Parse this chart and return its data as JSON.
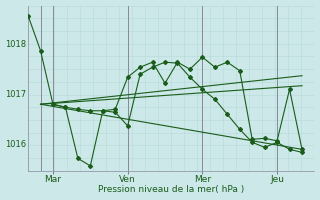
{
  "background_color": "#cce8e8",
  "grid_color_v": "#b8d8d8",
  "grid_color_h": "#b8d8d8",
  "vline_color": "#888899",
  "line_color": "#1a5c1a",
  "xlabel": "Pression niveau de la mer( hPa )",
  "yticks": [
    1016,
    1017,
    1018
  ],
  "ylim": [
    1015.45,
    1018.75
  ],
  "xlim": [
    0.0,
    11.5
  ],
  "xtick_labels": [
    "Mar",
    "Ven",
    "Mer",
    "Jeu"
  ],
  "xtick_positions": [
    1.0,
    4.0,
    7.0,
    10.0
  ],
  "vline_positions": [
    0.5,
    1.0,
    4.0,
    7.0,
    10.0
  ],
  "n_hgrid": 14,
  "n_vgrid": 14,
  "series1_x": [
    0.0,
    0.5,
    1.0,
    1.5,
    2.0,
    2.5,
    3.0,
    3.5,
    4.0,
    4.5,
    5.0,
    5.5,
    6.0,
    6.5,
    7.0,
    7.5,
    8.0,
    8.5,
    9.0,
    9.5,
    10.0,
    10.5,
    11.0
  ],
  "series1_y": [
    1018.55,
    1017.85,
    1016.78,
    1016.72,
    1015.7,
    1015.55,
    1016.65,
    1016.62,
    1016.35,
    1017.38,
    1017.52,
    1017.62,
    1017.6,
    1017.32,
    1017.08,
    1016.88,
    1016.58,
    1016.28,
    1016.02,
    1015.92,
    1016.02,
    1015.88,
    1015.82
  ],
  "series2_x": [
    0.5,
    11.0
  ],
  "series2_y": [
    1016.78,
    1015.88
  ],
  "series3_x": [
    0.5,
    11.0
  ],
  "series3_y": [
    1016.78,
    1017.15
  ],
  "series4_x": [
    0.5,
    11.0
  ],
  "series4_y": [
    1016.78,
    1017.35
  ],
  "series5_x": [
    1.0,
    1.5,
    2.0,
    2.5,
    3.0,
    3.5,
    4.0,
    4.5,
    5.0,
    5.5,
    6.0,
    6.5,
    7.0,
    7.5,
    8.0,
    8.5,
    9.0,
    9.5,
    10.0,
    10.5,
    11.0
  ],
  "series5_y": [
    1016.78,
    1016.72,
    1016.68,
    1016.65,
    1016.65,
    1016.68,
    1017.32,
    1017.52,
    1017.62,
    1017.2,
    1017.62,
    1017.48,
    1017.72,
    1017.52,
    1017.62,
    1017.45,
    1016.08,
    1016.1,
    1016.05,
    1017.08,
    1015.88
  ]
}
